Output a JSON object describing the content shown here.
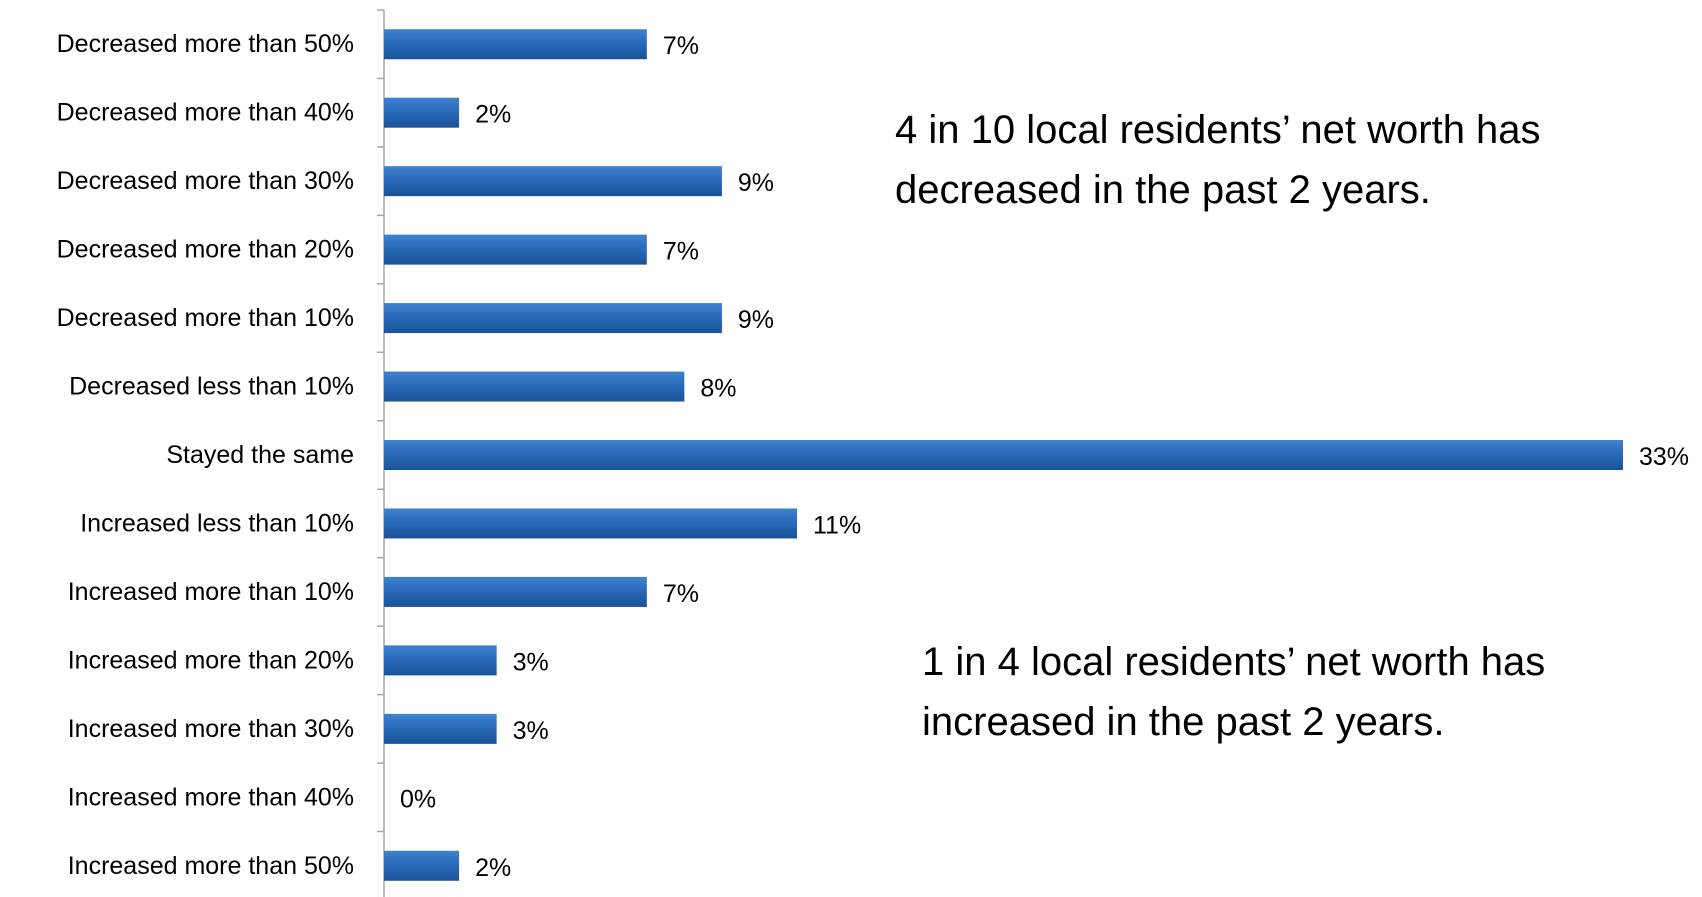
{
  "chart_data": {
    "type": "bar",
    "orientation": "horizontal",
    "categories": [
      "Decreased more than 50%",
      "Decreased more than 40%",
      "Decreased more than 30%",
      "Decreased more than 20%",
      "Decreased more than 10%",
      "Decreased less than 10%",
      "Stayed the same",
      "Increased less than 10%",
      "Increased more than 10%",
      "Increased more than 20%",
      "Increased more than 30%",
      "Increased more than 40%",
      "Increased more than 50%"
    ],
    "values": [
      7,
      2,
      9,
      7,
      9,
      8,
      33,
      11,
      7,
      3,
      3,
      0,
      2
    ],
    "value_labels": [
      "7%",
      "2%",
      "9%",
      "7%",
      "9%",
      "8%",
      "33%",
      "11%",
      "7%",
      "3%",
      "3%",
      "0%",
      "2%"
    ],
    "xlim": [
      0,
      33
    ],
    "grid": false,
    "legend": "none",
    "bar_color": "#1F63B0",
    "axis_color": "#A6A6A6",
    "annotations": [
      {
        "line1": "4 in 10 local residents’ net worth has",
        "line2": "decreased in the past 2 years."
      },
      {
        "line1": "1 in 4 local residents’ net worth has",
        "line2": "increased in the past 2 years."
      }
    ]
  }
}
